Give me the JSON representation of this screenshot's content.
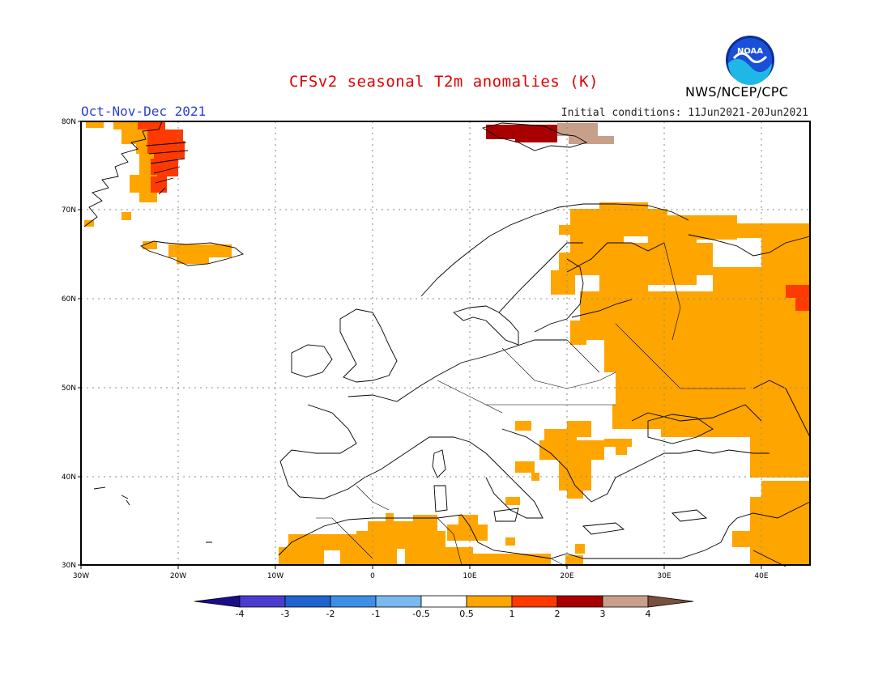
{
  "title": "CFSv2 seasonal T2m anomalies (K)",
  "season": "Oct-Nov-Dec 2021",
  "initial_conditions": "Initial conditions: 11Jun2021-20Jun2021",
  "agency": "NWS/NCEP/CPC",
  "logo_text": "NOAA",
  "axes": {
    "lat_ticks": [
      "80N",
      "70N",
      "60N",
      "50N",
      "40N",
      "30N"
    ],
    "lon_ticks": [
      "30W",
      "20W",
      "10W",
      "0",
      "10E",
      "20E",
      "30E",
      "40E"
    ]
  },
  "colorbar": {
    "labels": [
      "-4",
      "-3",
      "-2",
      "-1",
      "-0.5",
      "0.5",
      "1",
      "2",
      "3",
      "4"
    ],
    "colors": [
      "#1a0c8a",
      "#4b3ccf",
      "#1e63d0",
      "#3d8fe6",
      "#7ab8f0",
      "#ffffff",
      "#ffa500",
      "#ff3a00",
      "#a80000",
      "#c8a08a",
      "#7a4e3c"
    ]
  },
  "colors": {
    "anomaly_0_5_to_1": "#ffa500",
    "anomaly_1_to_2": "#ff3a00",
    "anomaly_2_to_3": "#a80000",
    "anomaly_3_to_4": "#c8a08a",
    "title": "#e00000",
    "season": "#2a3fd6"
  }
}
